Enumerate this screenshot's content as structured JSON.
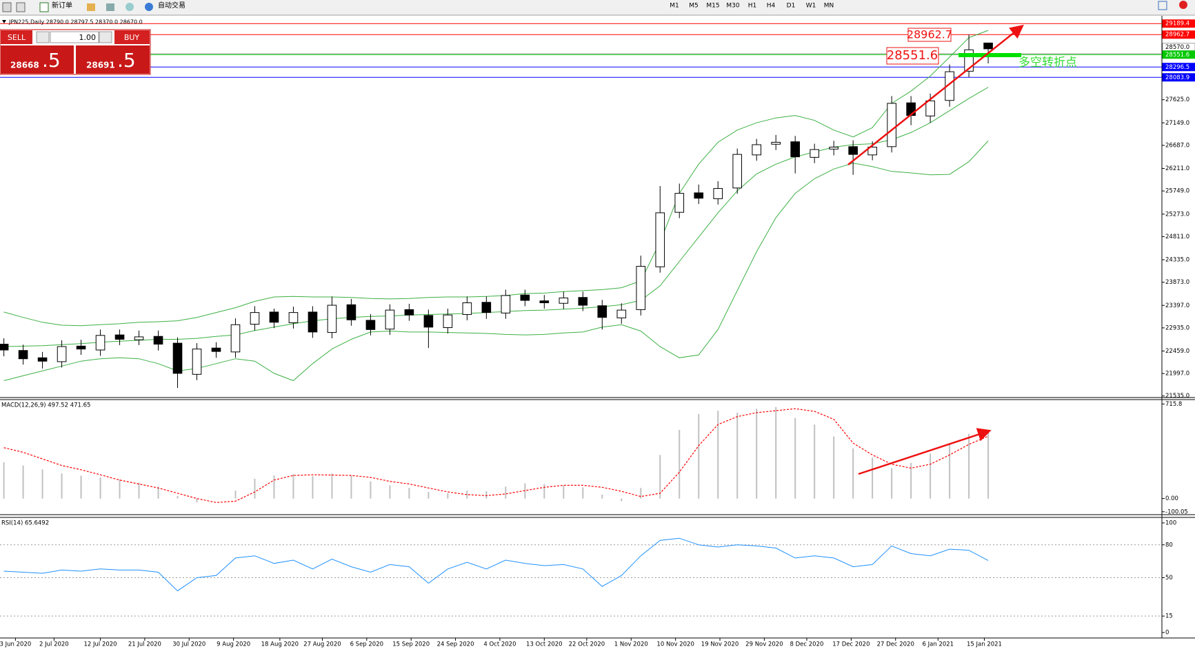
{
  "toolbar": {
    "new_order": "新订单",
    "auto_trading": "自动交易",
    "timeframes": [
      "M1",
      "M5",
      "M15",
      "M30",
      "H1",
      "H4",
      "D1",
      "W1",
      "MN"
    ]
  },
  "trade_panel": {
    "sell": "SELL",
    "buy": "BUY",
    "lots": "1.00",
    "sell_big": "28668",
    "sell_small": ".5",
    "buy_big": "28691",
    "buy_small": ".5"
  },
  "annotations": [
    "28962.7",
    "28551.6",
    "多空转折点"
  ],
  "chart_data": [
    {
      "type": "candlestick",
      "title": "JPN225,Daily  28790.0 28797.5 28370.0 28670.0",
      "xlim": [
        -0.2,
        60
      ],
      "ylim": [
        21503,
        29334
      ],
      "yticks": [
        {
          "value": 21535,
          "label": "21535.0"
        },
        {
          "value": 21997,
          "label": "21997.0"
        },
        {
          "value": 22459,
          "label": "22459.0"
        },
        {
          "value": 22935,
          "label": "22935.0"
        },
        {
          "value": 23397,
          "label": "23397.0"
        },
        {
          "value": 23873,
          "label": "23873.0"
        },
        {
          "value": 24335,
          "label": "24335.0"
        },
        {
          "value": 24811,
          "label": "24811.0"
        },
        {
          "value": 25273,
          "label": "25273.0"
        },
        {
          "value": 25749,
          "label": "25749.0"
        },
        {
          "value": 26211,
          "label": "26211.0"
        },
        {
          "value": 26687,
          "label": "26687.0"
        },
        {
          "value": 27149,
          "label": "27149.0"
        },
        {
          "value": 27625,
          "label": "27625.0"
        }
      ],
      "xticks": [
        {
          "value": 0.6,
          "label": "3 Jun 2020"
        },
        {
          "value": 2.6,
          "label": "2 Jul 2020"
        },
        {
          "value": 5.0,
          "label": "12 Jul 2020"
        },
        {
          "value": 7.3,
          "label": "21 Jul 2020"
        },
        {
          "value": 9.6,
          "label": "30 Jul 2020"
        },
        {
          "value": 11.9,
          "label": "9 Aug 2020"
        },
        {
          "value": 14.3,
          "label": "18 Aug 2020"
        },
        {
          "value": 16.5,
          "label": "27 Aug 2020"
        },
        {
          "value": 18.8,
          "label": "6 Sep 2020"
        },
        {
          "value": 21.1,
          "label": "15 Sep 2020"
        },
        {
          "value": 23.4,
          "label": "24 Sep 2020"
        },
        {
          "value": 25.7,
          "label": "4 Oct 2020"
        },
        {
          "value": 28.0,
          "label": "13 Oct 2020"
        },
        {
          "value": 30.2,
          "label": "22 Oct 2020"
        },
        {
          "value": 32.5,
          "label": "1 Nov 2020"
        },
        {
          "value": 34.8,
          "label": "10 Nov 2020"
        },
        {
          "value": 37.1,
          "label": "19 Nov 2020"
        },
        {
          "value": 39.4,
          "label": "29 Nov 2020"
        },
        {
          "value": 41.6,
          "label": "8 Dec 2020"
        },
        {
          "value": 43.9,
          "label": "17 Dec 2020"
        },
        {
          "value": 46.2,
          "label": "27 Dec 2020"
        },
        {
          "value": 48.4,
          "label": "6 Jan 2021"
        },
        {
          "value": 50.8,
          "label": "15 Jan 2021"
        }
      ],
      "hlines": [
        {
          "value": 29189.4,
          "color": "#ff0000"
        },
        {
          "value": 28962.7,
          "color": "#ff0000"
        },
        {
          "value": 28570,
          "label": "28570.0",
          "color": "#a0a0a0"
        },
        {
          "value": 28551.6,
          "color": "#00c800"
        },
        {
          "value": 28296.5,
          "color": "#0000ff"
        },
        {
          "value": 28083.9,
          "color": "#0000ff"
        }
      ],
      "open": [
        22600,
        22470,
        22320,
        22240,
        22560,
        22480,
        22790,
        22690,
        22760,
        22620,
        21980,
        22520,
        22440,
        23010,
        23260,
        23040,
        23260,
        22840,
        23410,
        23090,
        22910,
        23310,
        23190,
        22940,
        23210,
        23460,
        23240,
        23610,
        23490,
        23440,
        23560,
        23390,
        23140,
        23310,
        24190,
        25310,
        25710,
        25590,
        25810,
        26490,
        26710,
        26760,
        26440,
        26610,
        26660,
        26490,
        26660,
        27560,
        27290,
        27610,
        28210,
        28790
      ],
      "high": [
        22720,
        22590,
        22440,
        22680,
        22690,
        22900,
        22900,
        22880,
        22880,
        22740,
        22620,
        22640,
        23130,
        23380,
        23330,
        23370,
        23380,
        23580,
        23530,
        23220,
        23420,
        23430,
        23310,
        23330,
        23580,
        23580,
        23720,
        23720,
        23610,
        23680,
        23680,
        23510,
        23440,
        24420,
        25850,
        25900,
        25880,
        25950,
        26620,
        26820,
        26900,
        26880,
        26720,
        26780,
        26790,
        26770,
        27700,
        27700,
        27750,
        28350,
        28960,
        28797.5
      ],
      "low": [
        22350,
        22180,
        22100,
        22120,
        22380,
        22360,
        22580,
        22580,
        22470,
        21700,
        21860,
        22320,
        22320,
        22880,
        22930,
        22920,
        22730,
        22720,
        22980,
        22780,
        22790,
        23080,
        22520,
        22820,
        23090,
        23120,
        23120,
        23380,
        23330,
        23320,
        23280,
        22900,
        23020,
        23190,
        24070,
        25190,
        25480,
        25470,
        25690,
        26370,
        26590,
        26110,
        26320,
        26480,
        26080,
        26380,
        26540,
        27100,
        27150,
        27480,
        28090,
        28370
      ],
      "close": [
        22480,
        22300,
        22250,
        22550,
        22500,
        22780,
        22700,
        22750,
        22600,
        22000,
        22500,
        22450,
        23000,
        23250,
        23050,
        23250,
        22850,
        23400,
        23100,
        22900,
        23300,
        23200,
        22950,
        23200,
        23450,
        23250,
        23600,
        23500,
        23450,
        23550,
        23400,
        23150,
        23300,
        24200,
        25300,
        25700,
        25600,
        25800,
        26500,
        26700,
        26750,
        26450,
        26600,
        26650,
        26500,
        26650,
        27550,
        27300,
        27600,
        28200,
        28650,
        28670
      ],
      "up_color": "#ffffff",
      "down_color": "#000000",
      "series": [
        {
          "color": "#3cb043",
          "values": [
            23260,
            23150,
            23050,
            22990,
            22980,
            23000,
            23020,
            23050,
            23060,
            23080,
            23150,
            23250,
            23350,
            23480,
            23570,
            23580,
            23570,
            23570,
            23560,
            23540,
            23530,
            23540,
            23560,
            23570,
            23570,
            23580,
            23600,
            23640,
            23650,
            23680,
            23700,
            23720,
            23760,
            23900,
            24700,
            25700,
            26300,
            26750,
            27000,
            27150,
            27250,
            27300,
            27200,
            27000,
            26860,
            27050,
            27550,
            27800,
            28110,
            28500,
            28900,
            29050
          ]
        },
        {
          "color": "#3cb043",
          "values": [
            22550,
            22560,
            22570,
            22590,
            22610,
            22640,
            22660,
            22680,
            22700,
            22700,
            22720,
            22760,
            22790,
            22880,
            22950,
            23020,
            23080,
            23120,
            23150,
            23170,
            23180,
            23200,
            23210,
            23220,
            23230,
            23250,
            23270,
            23290,
            23300,
            23320,
            23340,
            23370,
            23410,
            23500,
            23800,
            24300,
            24800,
            25300,
            25750,
            26100,
            26300,
            26450,
            26550,
            26650,
            26700,
            26720,
            26800,
            26950,
            27150,
            27400,
            27650,
            27880
          ]
        },
        {
          "color": "#3cb043",
          "values": [
            21850,
            21950,
            22050,
            22150,
            22250,
            22300,
            22320,
            22300,
            22200,
            22050,
            22100,
            22200,
            22300,
            22250,
            22000,
            21850,
            22200,
            22500,
            22700,
            22850,
            22870,
            22850,
            22850,
            22840,
            22830,
            22820,
            22800,
            22790,
            22800,
            22830,
            22850,
            22950,
            23000,
            22870,
            22550,
            22320,
            22380,
            22900,
            23700,
            24500,
            25200,
            25700,
            26000,
            26200,
            26320,
            26250,
            26150,
            26120,
            26080,
            26090,
            26350,
            26780
          ]
        }
      ]
    },
    {
      "type": "macd",
      "title": "MACD(12,26,9) 497.52 471.65",
      "ylim": [
        -122,
        749
      ],
      "yticks": [
        715.8,
        {
          "value": 0,
          "label": "0.00"
        },
        -100.05
      ],
      "series": [
        {
          "style": "bars",
          "color": "#c0c0c0",
          "values": [
            274,
            250,
            220,
            190,
            173,
            160,
            145,
            120,
            90,
            20,
            -30,
            0,
            60,
            150,
            175,
            185,
            170,
            190,
            175,
            130,
            100,
            80,
            50,
            40,
            60,
            55,
            90,
            115,
            110,
            100,
            85,
            30,
            -20,
            80,
            330,
            520,
            640,
            665,
            650,
            680,
            693,
            610,
            560,
            470,
            380,
            310,
            230,
            270,
            340,
            420,
            490,
            497.52
          ]
        },
        {
          "style": "dashed",
          "color": "#ff0000",
          "values": [
            385,
            350,
            300,
            250,
            218,
            180,
            140,
            110,
            80,
            40,
            0,
            -30,
            -20,
            50,
            140,
            175,
            180,
            178,
            175,
            160,
            130,
            110,
            80,
            50,
            30,
            22,
            35,
            60,
            85,
            100,
            100,
            85,
            55,
            15,
            40,
            200,
            400,
            560,
            620,
            650,
            665,
            680,
            660,
            600,
            420,
            330,
            260,
            230,
            260,
            330,
            410,
            471.65
          ]
        }
      ]
    },
    {
      "type": "line",
      "title": "RSI(14) 65.6492",
      "ylim": [
        -5,
        105
      ],
      "yticks": [
        100,
        80,
        50,
        15,
        0
      ],
      "levels": [
        80,
        50,
        15
      ],
      "series": [
        {
          "color": "#1e90ff",
          "values": [
            56,
            55,
            54,
            57,
            56,
            58,
            57,
            57,
            55,
            38,
            50,
            52,
            68,
            70,
            63,
            66,
            58,
            67,
            60,
            55,
            62,
            60,
            45,
            58,
            64,
            58,
            66,
            63,
            61,
            62,
            58,
            42,
            52,
            70,
            84,
            86,
            80,
            78,
            80,
            79,
            77,
            68,
            70,
            68,
            60,
            62,
            79,
            72,
            70,
            76,
            75,
            65.6492
          ]
        }
      ]
    }
  ]
}
